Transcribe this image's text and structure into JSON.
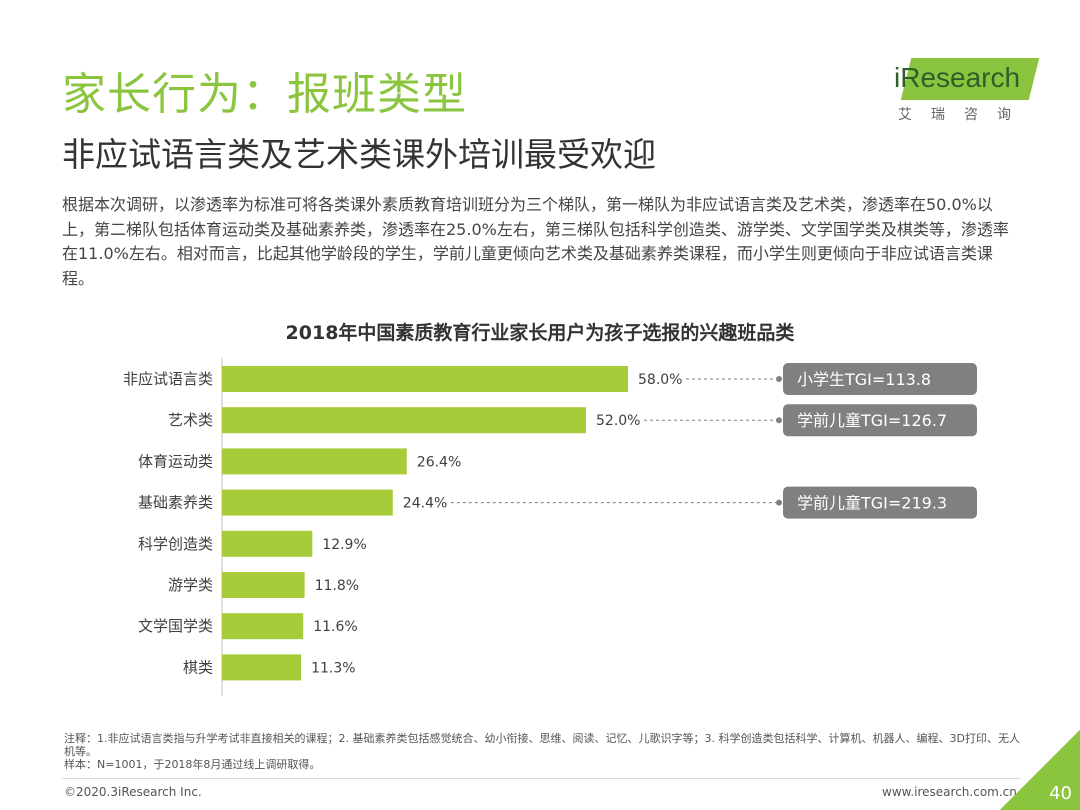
{
  "header": {
    "title": "家长行为：报班类型",
    "subtitle": "非应试语言类及艺术类课外培训最受欢迎"
  },
  "logo": {
    "brand": "iResearch",
    "brand_cn": "艾瑞咨询"
  },
  "description": "根据本次调研，以渗透率为标准可将各类课外素质教育培训班分为三个梯队，第一梯队为非应试语言类及艺术类，渗透率在50.0%以上，第二梯队包括体育运动类及基础素养类，渗透率在25.0%左右，第三梯队包括科学创造类、游学类、文学国学类及棋类等，渗透率在11.0%左右。相对而言，比起其他学龄段的学生，学前儿童更倾向艺术类及基础素养类课程，而小学生则更倾向于非应试语言类课程。",
  "chart_data": {
    "type": "bar",
    "orientation": "horizontal",
    "title": "2018年中国素质教育行业家长用户为孩子选报的兴趣班品类",
    "categories": [
      "非应试语言类",
      "艺术类",
      "体育运动类",
      "基础素养类",
      "科学创造类",
      "游学类",
      "文学国学类",
      "棋类"
    ],
    "values": [
      58.0,
      52.0,
      26.4,
      24.4,
      12.9,
      11.8,
      11.6,
      11.3
    ],
    "value_labels": [
      "58.0%",
      "52.0%",
      "26.4%",
      "24.4%",
      "12.9%",
      "11.8%",
      "11.6%",
      "11.3%"
    ],
    "xlim": [
      0,
      100
    ],
    "bar_color": "#a6cc3a",
    "annotations": [
      {
        "category_index": 0,
        "text": "小学生TGI=113.8"
      },
      {
        "category_index": 1,
        "text": "学前儿童TGI=126.7"
      },
      {
        "category_index": 3,
        "text": "学前儿童TGI=219.3"
      }
    ],
    "annotation_color": "#808080"
  },
  "notes": {
    "line1": "注释：1.非应试语言类指与升学考试非直接相关的课程；2. 基础素养类包括感觉统合、幼小衔接、思维、阅读、记忆、儿歌识字等；3. 科学创造类包括科学、计算机、机器人、编程、3D打印、无人机等。",
    "line2": "样本：N=1001，于2018年8月通过线上调研取得。"
  },
  "footer": {
    "copyright": "©2020.3iResearch Inc.",
    "website": "www.iresearch.com.cn",
    "page_number": "40"
  }
}
